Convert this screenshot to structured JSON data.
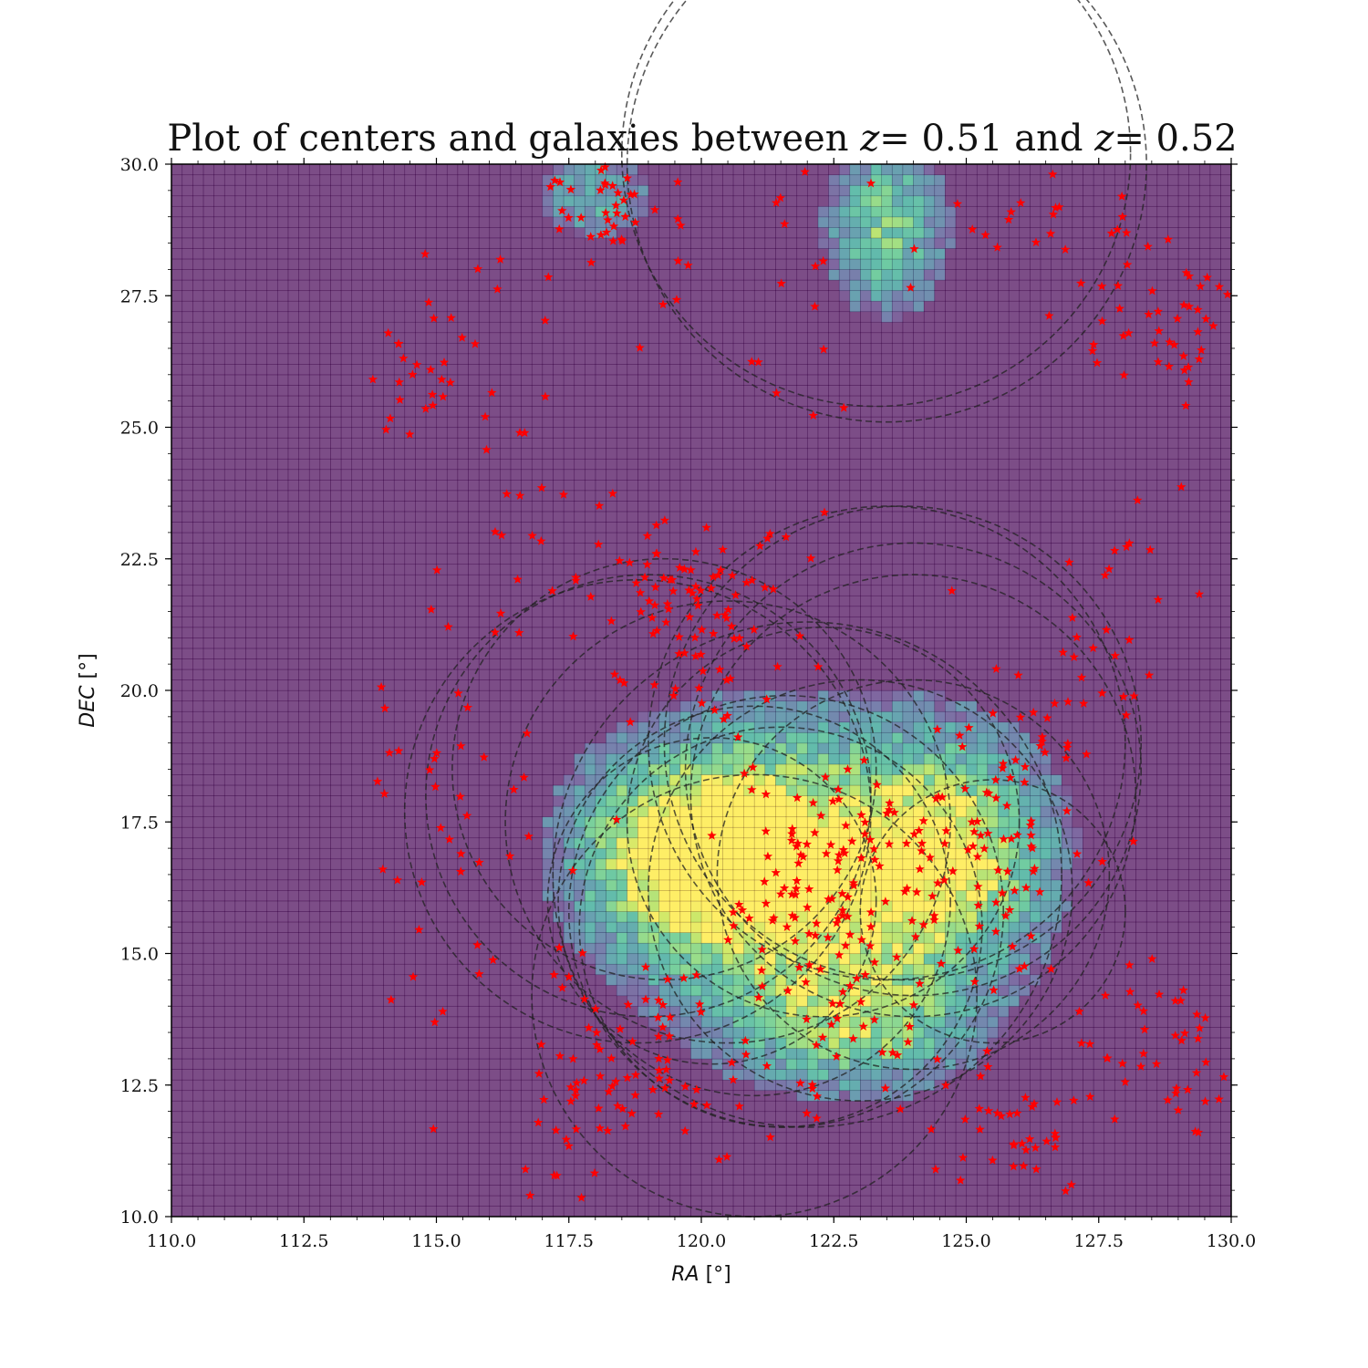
{
  "chart_data": {
    "type": "heatmap",
    "title_parts": {
      "prefix": "Plot of centers and galaxies between ",
      "z_symbol": "z",
      "lower": "= 0.51",
      "middle": " and ",
      "upper": "= 0.52"
    },
    "x_axis": {
      "name": "RA",
      "unit": "[°]",
      "range": [
        110.0,
        130.0
      ],
      "ticks": [
        110.0,
        112.5,
        115.0,
        117.5,
        120.0,
        122.5,
        125.0,
        127.5,
        130.0
      ],
      "tick_labels": [
        "110.0",
        "112.5",
        "115.0",
        "117.5",
        "120.0",
        "122.5",
        "125.0",
        "127.5",
        "130.0"
      ]
    },
    "y_axis": {
      "name": "DEC",
      "unit": "[°]",
      "range": [
        10.0,
        30.0
      ],
      "ticks": [
        10.0,
        12.5,
        15.0,
        17.5,
        20.0,
        22.5,
        25.0,
        27.5,
        30.0
      ],
      "tick_labels": [
        "10.0",
        "12.5",
        "15.0",
        "17.5",
        "20.0",
        "22.5",
        "25.0",
        "27.5",
        "30.0"
      ]
    },
    "heatmap": {
      "colormap": "viridis",
      "alpha": 0.7,
      "bins": 100,
      "grid": true,
      "dense_regions": [
        {
          "ra": 122.0,
          "dec": 16.5,
          "sigma_ra": 2.6,
          "sigma_dec": 2.3,
          "weight": 1.0
        },
        {
          "ra": 119.5,
          "dec": 17.0,
          "sigma_ra": 1.5,
          "sigma_dec": 1.4,
          "weight": 0.7
        },
        {
          "ra": 125.0,
          "dec": 17.0,
          "sigma_ra": 1.4,
          "sigma_dec": 1.6,
          "weight": 0.6
        },
        {
          "ra": 123.0,
          "dec": 13.5,
          "sigma_ra": 1.6,
          "sigma_dec": 0.9,
          "weight": 0.5
        },
        {
          "ra": 123.5,
          "dec": 28.8,
          "sigma_ra": 0.9,
          "sigma_dec": 1.3,
          "weight": 0.8
        },
        {
          "ra": 118.0,
          "dec": 29.4,
          "sigma_ra": 0.9,
          "sigma_dec": 0.7,
          "weight": 0.6
        }
      ]
    },
    "circles": {
      "style": "dashed",
      "color": "#222222",
      "items": [
        {
          "ra": 123.5,
          "dec": 30.0,
          "r": 4.9
        },
        {
          "ra": 123.3,
          "dec": 30.2,
          "r": 4.8
        },
        {
          "ra": 119.0,
          "dec": 18.0,
          "r": 4.2
        },
        {
          "ra": 119.3,
          "dec": 18.5,
          "r": 4.0
        },
        {
          "ra": 118.8,
          "dec": 17.7,
          "r": 4.4
        },
        {
          "ra": 120.5,
          "dec": 17.5,
          "r": 4.2
        },
        {
          "ra": 121.0,
          "dec": 16.0,
          "r": 3.7
        },
        {
          "ra": 121.5,
          "dec": 15.5,
          "r": 3.8
        },
        {
          "ra": 121.6,
          "dec": 15.8,
          "r": 4.1
        },
        {
          "ra": 122.0,
          "dec": 16.5,
          "r": 4.8
        },
        {
          "ra": 123.5,
          "dec": 19.0,
          "r": 4.5
        },
        {
          "ra": 124.0,
          "dec": 18.0,
          "r": 4.2
        },
        {
          "ra": 123.8,
          "dec": 19.0,
          "r": 4.5
        },
        {
          "ra": 124.0,
          "dec": 18.5,
          "r": 4.3
        },
        {
          "ra": 124.0,
          "dec": 16.5,
          "r": 3.7
        },
        {
          "ra": 123.0,
          "dec": 16.2,
          "r": 4.0
        },
        {
          "ra": 122.3,
          "dec": 17.5,
          "r": 3.7
        },
        {
          "ra": 121.0,
          "dec": 14.2,
          "r": 4.2
        },
        {
          "ra": 125.5,
          "dec": 15.8,
          "r": 2.5
        },
        {
          "ra": 120.2,
          "dec": 16.0,
          "r": 3.1
        }
      ]
    },
    "markers": {
      "symbol": "star",
      "color": "#ff0000",
      "clusters": [
        {
          "ra": 122.8,
          "dec": 16.0,
          "s_ra": 1.4,
          "s_dec": 1.3,
          "n": 160
        },
        {
          "ra": 119.3,
          "dec": 21.8,
          "s_ra": 1.2,
          "s_dec": 0.8,
          "n": 70
        },
        {
          "ra": 125.8,
          "dec": 17.5,
          "s_ra": 0.8,
          "s_dec": 1.4,
          "n": 55
        },
        {
          "ra": 118.5,
          "dec": 13.0,
          "s_ra": 0.8,
          "s_dec": 1.1,
          "n": 60
        },
        {
          "ra": 115.3,
          "dec": 17.5,
          "s_ra": 0.8,
          "s_dec": 2.2,
          "n": 45
        },
        {
          "ra": 118.3,
          "dec": 29.3,
          "s_ra": 0.5,
          "s_dec": 0.5,
          "n": 35
        },
        {
          "ra": 128.6,
          "dec": 27.0,
          "s_ra": 0.8,
          "s_dec": 0.6,
          "n": 45
        },
        {
          "ra": 128.8,
          "dec": 13.2,
          "s_ra": 0.9,
          "s_dec": 1.0,
          "n": 40
        },
        {
          "ra": 115.0,
          "dec": 26.5,
          "s_ra": 0.8,
          "s_dec": 1.0,
          "n": 30
        },
        {
          "ra": 126.0,
          "dec": 11.5,
          "s_ra": 1.2,
          "s_dec": 0.6,
          "n": 35
        },
        {
          "ra": 127.0,
          "dec": 20.0,
          "s_ra": 1.0,
          "s_dec": 1.5,
          "n": 30
        },
        {
          "ra": 121.8,
          "dec": 12.5,
          "s_ra": 1.4,
          "s_dec": 0.8,
          "n": 35
        },
        {
          "ra": 120.5,
          "dec": 28.0,
          "s_ra": 2.0,
          "s_dec": 1.8,
          "n": 30
        },
        {
          "ra": 126.5,
          "dec": 29.2,
          "s_ra": 1.2,
          "s_dec": 0.6,
          "n": 20
        },
        {
          "ra": 120.5,
          "dec": 20.8,
          "s_ra": 0.7,
          "s_dec": 0.8,
          "n": 30
        },
        {
          "ra": 116.5,
          "dec": 23.0,
          "s_ra": 0.6,
          "s_dec": 1.0,
          "n": 15
        },
        {
          "ra": 128.5,
          "dec": 22.0,
          "s_ra": 0.7,
          "s_dec": 0.8,
          "n": 12
        },
        {
          "ra": 117.5,
          "dec": 11.2,
          "s_ra": 0.6,
          "s_dec": 0.6,
          "n": 12
        }
      ]
    }
  }
}
